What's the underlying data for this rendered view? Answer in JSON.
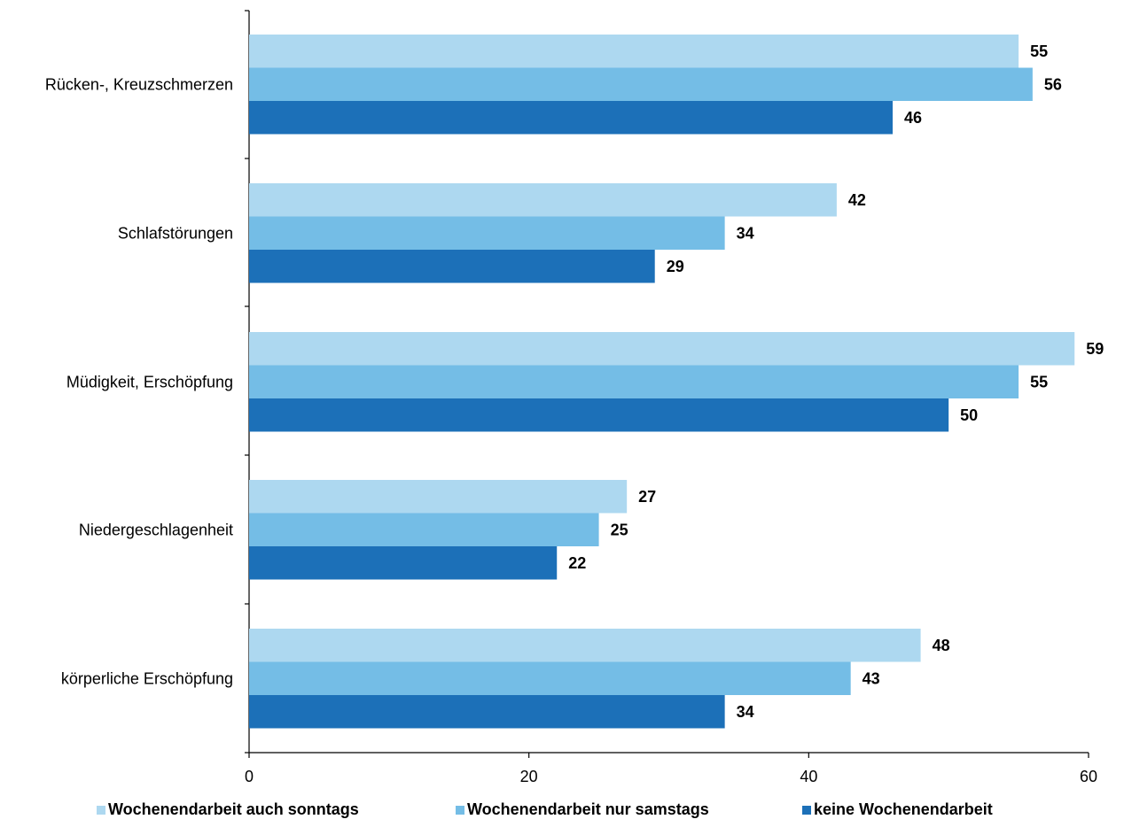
{
  "chart_data": {
    "type": "bar",
    "orientation": "horizontal",
    "categories": [
      "Rücken-, Kreuzschmerzen",
      "Schlafstörungen",
      "Müdigkeit, Erschöpfung",
      "Niedergeschlagenheit",
      "körperliche Erschöpfung"
    ],
    "series": [
      {
        "name": "Wochenendarbeit auch sonntags",
        "color": "#add8f0",
        "values": [
          55,
          42,
          59,
          27,
          48
        ]
      },
      {
        "name": "Wochenendarbeit nur samstags",
        "color": "#74bde6",
        "values": [
          56,
          34,
          55,
          25,
          43
        ]
      },
      {
        "name": "keine Wochenendarbeit",
        "color": "#1c70b8",
        "values": [
          46,
          29,
          50,
          22,
          34
        ]
      }
    ],
    "xlim": [
      0,
      60
    ],
    "xticks": [
      0,
      20,
      40,
      60
    ],
    "grid": false,
    "legend_position": "bottom",
    "title": "",
    "xlabel": "",
    "ylabel": ""
  }
}
